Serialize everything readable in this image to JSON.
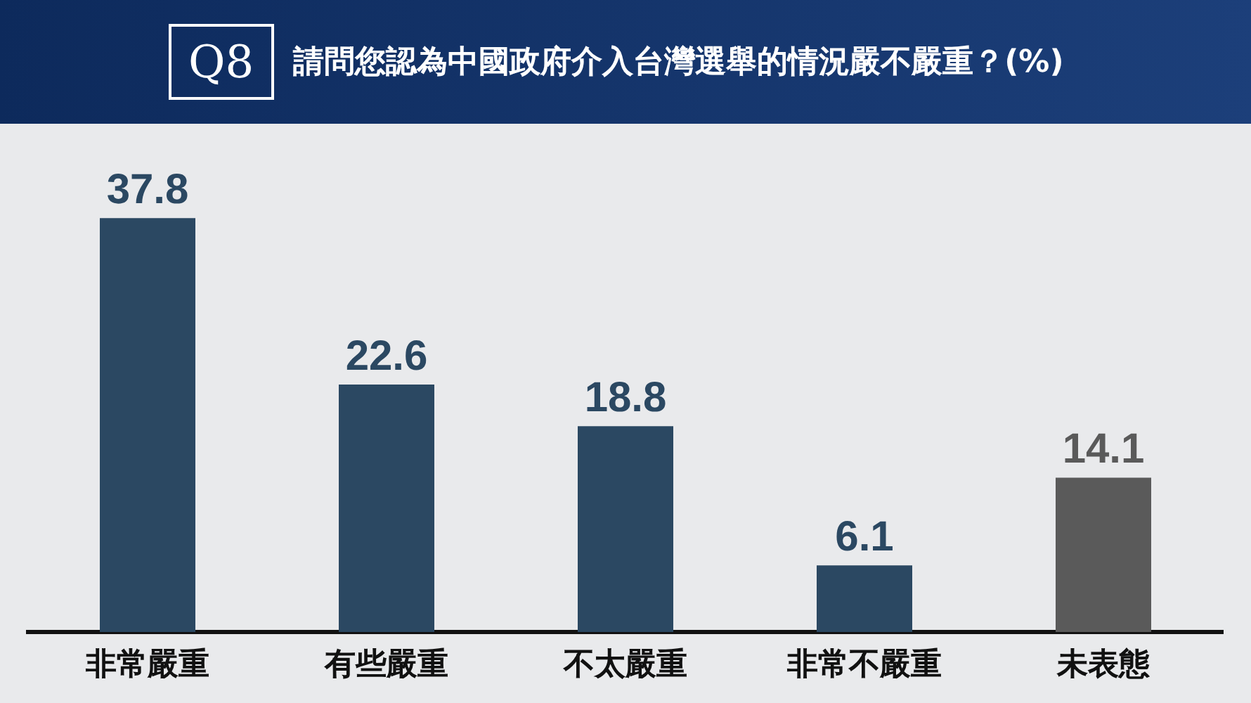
{
  "chart_data": {
    "type": "bar",
    "title": "請問您認為中國政府介入台灣選舉的情況嚴不嚴重？(%)",
    "annotations": [
      "Q8"
    ],
    "categories": [
      "非常嚴重",
      "有些嚴重",
      "不太嚴重",
      "非常不嚴重",
      "未表態"
    ],
    "values": [
      37.8,
      22.6,
      18.8,
      6.1,
      14.1
    ],
    "colors": [
      "#2b4862",
      "#2b4862",
      "#2b4862",
      "#2b4862",
      "#5a5a5a"
    ],
    "data_labels": true,
    "legend": false
  }
}
